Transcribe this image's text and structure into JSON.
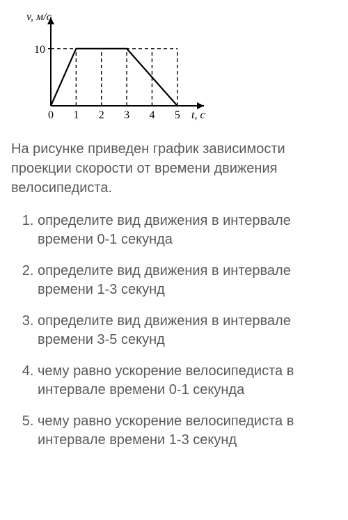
{
  "chart": {
    "type": "line",
    "y_axis_label": "v, м/с",
    "x_axis_label": "t, с",
    "y_tick_label": "10",
    "x_ticks": [
      "0",
      "1",
      "2",
      "3",
      "4",
      "5"
    ],
    "xlim": [
      0,
      5.5
    ],
    "ylim": [
      0,
      14
    ],
    "grid_x": [
      1,
      2,
      3,
      4,
      5
    ],
    "grid_y": [
      10
    ],
    "series_points": [
      [
        0,
        0
      ],
      [
        1,
        10
      ],
      [
        3,
        10
      ],
      [
        5,
        0
      ]
    ],
    "axis_color": "#000000",
    "grid_color": "#000000",
    "grid_dash": "5,4",
    "line_color": "#000000",
    "line_width": 2.2,
    "background_color": "#ffffff",
    "tick_fontsize": 16,
    "label_fontsize": 16
  },
  "description": "На рисунке приведен график зависимости проекции скорости от времени движения велосипедиста.",
  "questions": [
    "определите вид движения в интервале времени 0-1 секунда",
    "определите вид движения в интервале времени 1-3 секунд",
    "определите вид движения в интервале времени 3-5 секунд",
    "чему равно ускорение велосипедиста в интервале времени 0-1 секунда",
    "чему равно ускорение велосипедиста в интервале времени 1-3 секунд"
  ]
}
